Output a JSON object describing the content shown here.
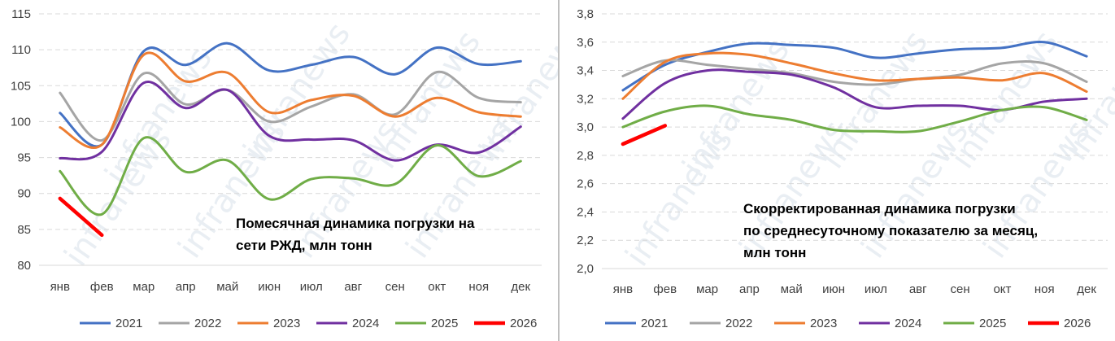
{
  "chart_data": [
    {
      "type": "line",
      "categories": [
        "янв",
        "фев",
        "мар",
        "апр",
        "май",
        "июн",
        "июл",
        "авг",
        "сен",
        "окт",
        "ноя",
        "дек"
      ],
      "ylim": [
        80,
        115
      ],
      "yticks": [
        "80",
        "85",
        "90",
        "95",
        "100",
        "105",
        "110",
        "115"
      ],
      "grid": true,
      "legend_position": "bottom",
      "annotation": [
        "Помесячная динамика погрузки на",
        "сети РЖД, млн тонн"
      ],
      "series": [
        {
          "name": "2021",
          "color": "#4472c4",
          "values": [
            101.2,
            96.8,
            109.8,
            107.9,
            110.9,
            107.1,
            107.9,
            109.0,
            106.6,
            110.3,
            108.0,
            108.4
          ]
        },
        {
          "name": "2022",
          "color": "#a5a5a5",
          "values": [
            104.0,
            97.4,
            106.7,
            102.4,
            104.4,
            100.0,
            102.1,
            103.8,
            101.0,
            106.9,
            103.3,
            102.7
          ]
        },
        {
          "name": "2023",
          "color": "#ed7d31",
          "values": [
            99.2,
            96.8,
            109.3,
            105.6,
            106.8,
            101.3,
            103.0,
            103.6,
            100.7,
            103.3,
            101.3,
            100.7
          ]
        },
        {
          "name": "2024",
          "color": "#7030a0",
          "values": [
            94.9,
            95.8,
            105.4,
            101.9,
            104.4,
            98.0,
            97.5,
            97.4,
            94.6,
            96.8,
            95.7,
            99.3
          ]
        },
        {
          "name": "2025",
          "color": "#70ad47",
          "values": [
            93.1,
            87.1,
            97.7,
            93.0,
            94.6,
            89.2,
            92.0,
            92.1,
            91.3,
            96.7,
            92.4,
            94.5
          ]
        },
        {
          "name": "2026",
          "color": "#ff0000",
          "values": [
            89.3,
            84.2,
            null,
            null,
            null,
            null,
            null,
            null,
            null,
            null,
            null,
            null
          ]
        }
      ]
    },
    {
      "type": "line",
      "categories": [
        "янв",
        "фев",
        "мар",
        "апр",
        "май",
        "июн",
        "июл",
        "авг",
        "сен",
        "окт",
        "ноя",
        "дек"
      ],
      "ylim": [
        2.0,
        3.8
      ],
      "yticks": [
        "2,0",
        "2,2",
        "2,4",
        "2,6",
        "2,8",
        "3,0",
        "3,2",
        "3,4",
        "3,6",
        "3,8"
      ],
      "grid": true,
      "legend_position": "bottom",
      "annotation": [
        "Скорректированная динамика погрузки",
        "по среднесуточному показателю за месяц,",
        "млн тонн"
      ],
      "series": [
        {
          "name": "2021",
          "color": "#4472c4",
          "values": [
            3.26,
            3.44,
            3.53,
            3.59,
            3.58,
            3.56,
            3.49,
            3.52,
            3.55,
            3.56,
            3.6,
            3.5
          ]
        },
        {
          "name": "2022",
          "color": "#a5a5a5",
          "values": [
            3.36,
            3.47,
            3.44,
            3.41,
            3.38,
            3.32,
            3.3,
            3.34,
            3.37,
            3.45,
            3.45,
            3.32
          ]
        },
        {
          "name": "2023",
          "color": "#ed7d31",
          "values": [
            3.2,
            3.46,
            3.52,
            3.51,
            3.45,
            3.38,
            3.33,
            3.34,
            3.35,
            3.33,
            3.38,
            3.25
          ]
        },
        {
          "name": "2024",
          "color": "#7030a0",
          "values": [
            3.06,
            3.31,
            3.4,
            3.39,
            3.37,
            3.28,
            3.14,
            3.15,
            3.15,
            3.12,
            3.18,
            3.2
          ]
        },
        {
          "name": "2025",
          "color": "#70ad47",
          "values": [
            3.0,
            3.11,
            3.15,
            3.09,
            3.05,
            2.98,
            2.97,
            2.97,
            3.04,
            3.12,
            3.14,
            3.05
          ]
        },
        {
          "name": "2026",
          "color": "#ff0000",
          "values": [
            2.88,
            3.01,
            null,
            null,
            null,
            null,
            null,
            null,
            null,
            null,
            null,
            null
          ]
        }
      ]
    }
  ],
  "watermark": "infranews"
}
